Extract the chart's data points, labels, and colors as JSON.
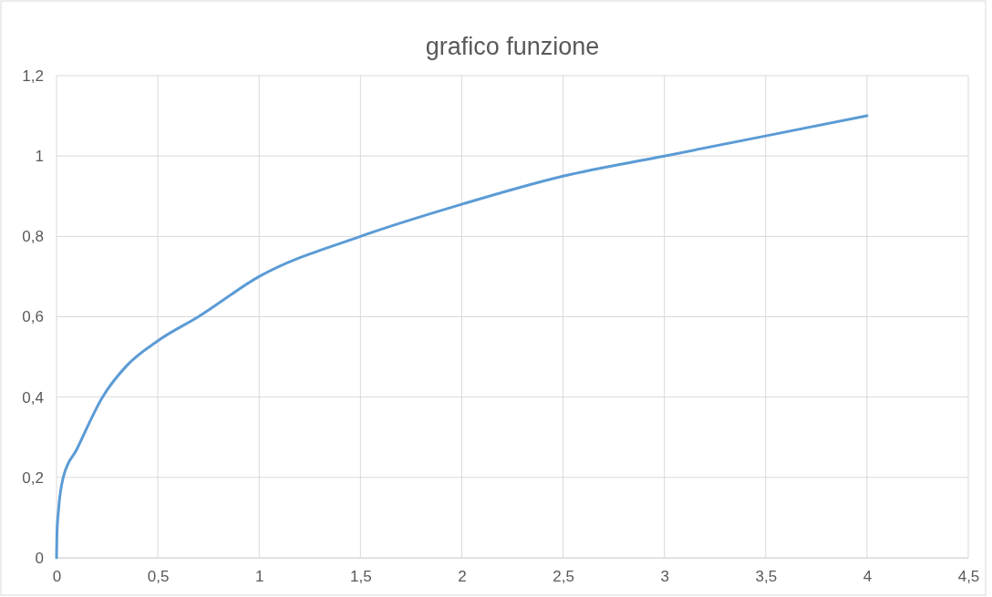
{
  "chart_data": {
    "type": "line",
    "title": "grafico funzione",
    "x": [
      0,
      0.002,
      0.01,
      0.033,
      0.1,
      0.227,
      0.35,
      0.5,
      0.7,
      1,
      1.5,
      2,
      2.5,
      3,
      3.5,
      4
    ],
    "series": [
      {
        "color": "#5b9bd5",
        "values": [
          0,
          0.06,
          0.12,
          0.2,
          0.27,
          0.4,
          0.48,
          0.54,
          0.6,
          0.7,
          0.8,
          0.88,
          0.95,
          1.0,
          1.05,
          1.1
        ]
      }
    ],
    "xlim": [
      0,
      4.5
    ],
    "xticks": [
      {
        "value": 0,
        "label": "0"
      },
      {
        "value": 0.5,
        "label": "0,5"
      },
      {
        "value": 1,
        "label": "1"
      },
      {
        "value": 1.5,
        "label": "1,5"
      },
      {
        "value": 2,
        "label": "2"
      },
      {
        "value": 2.5,
        "label": "2,5"
      },
      {
        "value": 3,
        "label": "3"
      },
      {
        "value": 3.5,
        "label": "3,5"
      },
      {
        "value": 4,
        "label": "4"
      },
      {
        "value": 4.5,
        "label": "4,5"
      }
    ],
    "ylim": [
      0,
      1.2
    ],
    "yticks": [
      {
        "value": 0,
        "label": "0"
      },
      {
        "value": 0.2,
        "label": "0,2"
      },
      {
        "value": 0.4,
        "label": "0,4"
      },
      {
        "value": 0.6,
        "label": "0,6"
      },
      {
        "value": 0.8,
        "label": "0,8"
      },
      {
        "value": 1,
        "label": "1"
      },
      {
        "value": 1.2,
        "label": "1,2"
      }
    ],
    "grid": true,
    "marker": "none",
    "line_style": "solid"
  }
}
